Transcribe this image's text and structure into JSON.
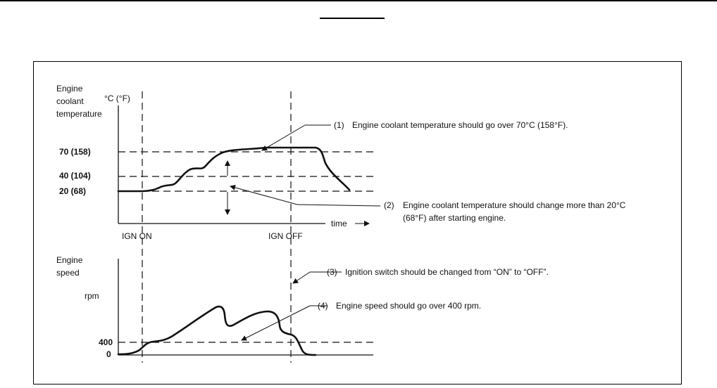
{
  "header": {
    "title_text": ""
  },
  "top_chart": {
    "y_title_lines": [
      "Engine",
      "coolant",
      "temperature"
    ],
    "y_unit": "°C (°F)",
    "y_ticks": [
      "70 (158)",
      "40 (104)",
      "20 (68)"
    ],
    "x_label": "time",
    "event_labels": [
      "IGN  ON",
      "IGN  OFF"
    ]
  },
  "bottom_chart": {
    "y_title_lines": [
      "Engine",
      "speed"
    ],
    "y_unit": "rpm",
    "y_ticks": [
      "400",
      "0"
    ]
  },
  "notes": {
    "n1_marker": "(1)",
    "n1_text": "Engine coolant temperature should go over 70°C (158°F).",
    "n2_marker": "(2)",
    "n2_text_line1": "Engine coolant temperature should change more than 20°C",
    "n2_text_line2": "(68°F) after starting engine.",
    "n3_marker": "(3)",
    "n3_text": "Ignition switch should be changed from “ON” to “OFF”.",
    "n4_marker": "(4)",
    "n4_text": "Engine speed should go over 400 rpm."
  }
}
